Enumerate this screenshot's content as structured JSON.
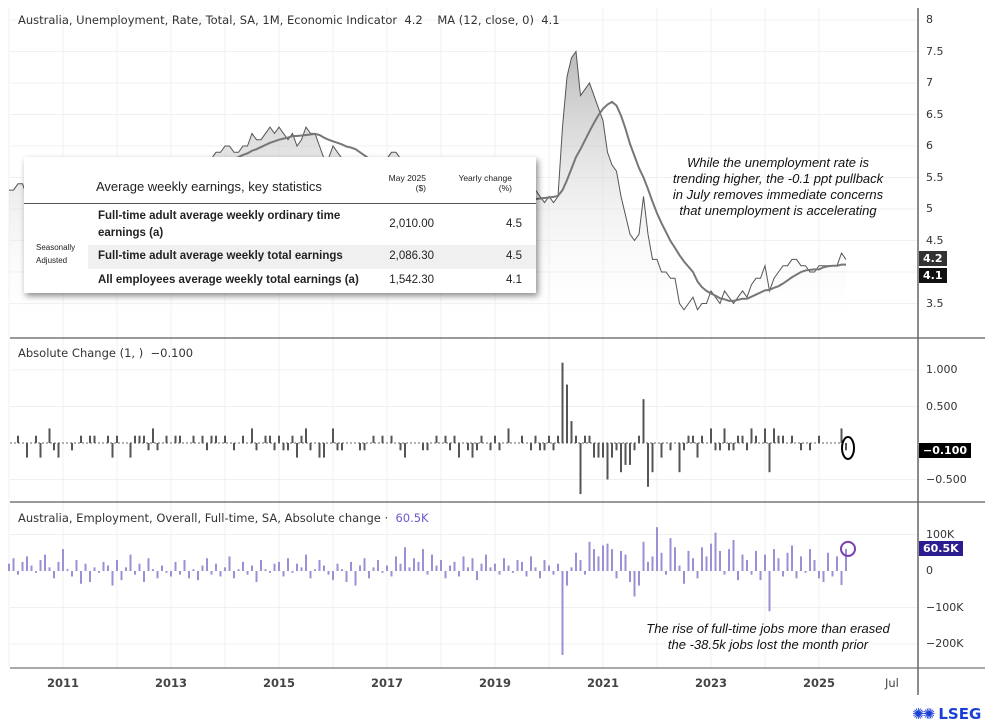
{
  "header": {
    "unemployment_label": "Australia, Unemployment, Rate, Total, SA, 1M, Economic Indicator",
    "unemployment_value": "4.2",
    "ma_label": "MA (12, close, 0)",
    "ma_value": "4.1"
  },
  "panel2": {
    "label": "Absolute Change (1, )",
    "value": "−0.100"
  },
  "panel3": {
    "label": "Australia, Employment, Overall, Full-time, SA, Absolute change ·",
    "value": "60.5K"
  },
  "table": {
    "title": "Average weekly earnings, key statistics",
    "col1": "May 2025",
    "col1_unit": "($)",
    "col2": "Yearly change",
    "col2_unit": "(%)",
    "side_label_1": "Seasonally",
    "side_label_2": "Adjusted",
    "rows": [
      {
        "label_1": "Full-time adult average weekly ordinary time",
        "label_2": "earnings (a)",
        "value": "2,010.00",
        "change": "4.5"
      },
      {
        "label_1": "Full-time adult average weekly total earnings",
        "value": "2,086.30",
        "change": "4.5"
      },
      {
        "label_1": "All employees average weekly total earnings (a)",
        "value": "1,542.30",
        "change": "4.1"
      }
    ]
  },
  "annotations": {
    "top": [
      "While the unemployment rate is",
      "trending higher, the -0.1 ppt pullback",
      "in July removes immediate concerns",
      "that unemployment is accelerating"
    ],
    "bottom": [
      "The rise of full-time jobs more than erased",
      "the -38.5k jobs lost the month prior"
    ]
  },
  "price_tags": {
    "last": "4.2",
    "ma": "4.1",
    "change": "−0.100",
    "employment": "60.5K"
  },
  "logo": "LSEG",
  "colors": {
    "line": "#555555",
    "ma": "#777777",
    "change_bars": "#555555",
    "employment_bars": "#9b8fd6",
    "employment_tag": "#2b1d8f",
    "circle_purple": "#7a3fb0"
  },
  "chart_data": [
    {
      "type": "line",
      "title": "",
      "series": [
        {
          "name": "Australia, Unemployment, Rate, Total, SA, 1M, Economic Indicator",
          "start": "2010-01",
          "frequency": "monthly",
          "values": [
            5.3,
            5.3,
            5.4,
            5.4,
            5.2,
            5.2,
            5.3,
            5.1,
            5.1,
            5.3,
            5.2,
            5.0,
            5.0,
            5.0,
            4.9,
            4.9,
            5.0,
            5.0,
            5.1,
            5.2,
            5.2,
            5.2,
            5.3,
            5.1,
            5.2,
            5.2,
            5.2,
            5.0,
            5.1,
            5.2,
            5.3,
            5.2,
            5.4,
            5.3,
            5.3,
            5.4,
            5.4,
            5.5,
            5.6,
            5.6,
            5.6,
            5.7,
            5.7,
            5.8,
            5.7,
            5.8,
            5.9,
            5.9,
            6.0,
            6.0,
            5.9,
            5.9,
            6.0,
            6.0,
            6.2,
            6.1,
            6.1,
            6.2,
            6.3,
            6.2,
            6.3,
            6.2,
            6.1,
            6.2,
            6.0,
            6.1,
            6.3,
            6.2,
            6.2,
            6.0,
            5.8,
            5.8,
            6.0,
            5.9,
            5.8,
            5.8,
            5.8,
            5.8,
            5.7,
            5.6,
            5.6,
            5.7,
            5.7,
            5.8,
            5.8,
            5.9,
            5.9,
            5.8,
            5.6,
            5.6,
            5.6,
            5.6,
            5.5,
            5.4,
            5.4,
            5.5,
            5.5,
            5.6,
            5.5,
            5.6,
            5.4,
            5.4,
            5.3,
            5.1,
            5.0,
            5.1,
            5.1,
            5.0,
            5.1,
            5.0,
            5.0,
            5.2,
            5.2,
            5.2,
            5.3,
            5.3,
            5.2,
            5.3,
            5.2,
            5.1,
            5.2,
            5.1,
            5.2,
            6.3,
            7.1,
            7.4,
            7.5,
            6.8,
            6.9,
            7.0,
            6.8,
            6.6,
            6.4,
            5.9,
            5.7,
            5.6,
            5.2,
            4.9,
            4.6,
            4.5,
            4.6,
            5.2,
            4.6,
            4.2,
            4.2,
            4.0,
            4.0,
            3.9,
            3.9,
            3.5,
            3.4,
            3.5,
            3.6,
            3.4,
            3.5,
            3.5,
            3.7,
            3.6,
            3.5,
            3.7,
            3.6,
            3.5,
            3.6,
            3.7,
            3.6,
            3.8,
            3.9,
            3.9,
            4.1,
            3.7,
            3.9,
            4.0,
            4.1,
            4.1,
            4.2,
            4.2,
            4.1,
            4.1,
            4.0,
            4.0,
            4.1,
            4.1,
            4.1,
            4.1,
            4.1,
            4.3,
            4.2
          ]
        },
        {
          "name": "MA (12, close, 0)",
          "derived": "12-month moving average"
        }
      ],
      "yticks": [
        3.5,
        4,
        4.5,
        5,
        5.5,
        6,
        6.5,
        7,
        7.5,
        8
      ],
      "ylim": [
        3.0,
        8.2
      ],
      "xticks": [
        "2011",
        "2013",
        "2015",
        "2017",
        "2019",
        "2021",
        "2023",
        "2025",
        "Jul"
      ]
    },
    {
      "type": "bar",
      "title": "",
      "series": [
        {
          "name": "Absolute Change (1, )",
          "derived": "monthly difference of unemployment rate"
        }
      ],
      "yticks": [
        "-0.500",
        "0.000",
        "0.500",
        "1.000"
      ],
      "ylim": [
        -0.8,
        1.2
      ]
    },
    {
      "type": "bar",
      "title": "",
      "series": [
        {
          "name": "Australia, Employment, Overall, Full-time, SA, Absolute change",
          "start": "2010-01",
          "frequency": "monthly",
          "unit": "K",
          "values": [
            20,
            35,
            -10,
            25,
            40,
            15,
            -5,
            30,
            45,
            10,
            -20,
            25,
            60,
            5,
            -15,
            30,
            -35,
            20,
            -30,
            10,
            -5,
            25,
            15,
            -40,
            30,
            -25,
            10,
            45,
            -10,
            20,
            -30,
            35,
            5,
            -20,
            15,
            -5,
            -15,
            25,
            -10,
            30,
            -20,
            5,
            -25,
            15,
            35,
            -10,
            20,
            -15,
            10,
            40,
            -20,
            5,
            25,
            -10,
            15,
            -30,
            30,
            5,
            -5,
            20,
            25,
            -15,
            35,
            -5,
            20,
            10,
            45,
            -20,
            5,
            30,
            15,
            -10,
            -25,
            20,
            5,
            -30,
            25,
            -40,
            15,
            35,
            -20,
            10,
            30,
            -5,
            15,
            -15,
            40,
            20,
            65,
            10,
            35,
            25,
            60,
            -10,
            45,
            15,
            30,
            -20,
            15,
            25,
            -15,
            40,
            10,
            35,
            -25,
            20,
            45,
            10,
            20,
            -10,
            35,
            15,
            -5,
            30,
            25,
            -15,
            40,
            10,
            -20,
            30,
            15,
            -10,
            20,
            -230,
            -40,
            10,
            50,
            30,
            -10,
            80,
            60,
            40,
            70,
            75,
            60,
            -20,
            55,
            45,
            -30,
            -70,
            -40,
            80,
            25,
            40,
            120,
            50,
            -10,
            90,
            65,
            15,
            -35,
            55,
            35,
            -20,
            65,
            40,
            75,
            105,
            55,
            -10,
            60,
            85,
            -25,
            45,
            30,
            -10,
            55,
            -25,
            45,
            -110,
            60,
            35,
            -15,
            50,
            70,
            -20,
            40,
            -5,
            60,
            30,
            -20,
            -30,
            50,
            -15,
            40,
            -38.5,
            60.5
          ]
        }
      ],
      "yticks": [
        "-200K",
        "-100K",
        "0",
        "100K"
      ],
      "ylim": [
        -240,
        130
      ]
    }
  ]
}
